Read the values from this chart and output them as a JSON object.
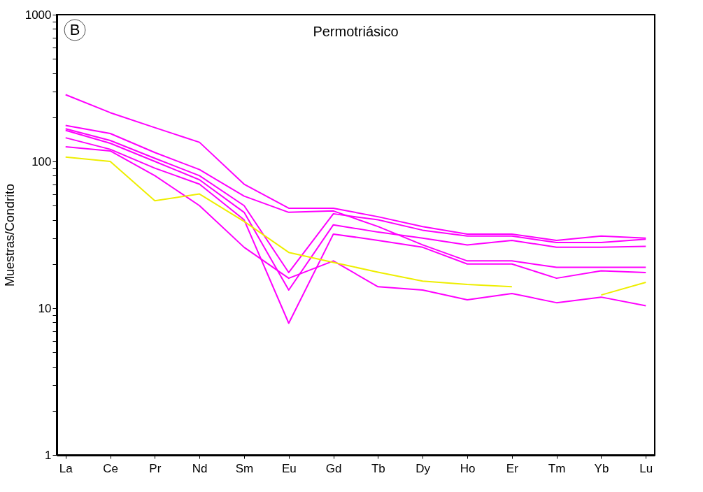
{
  "chart_data": {
    "type": "line",
    "title": "Permotriásico",
    "ylabel": "Muestras/Condrito",
    "annotations": [
      "B"
    ],
    "categories": [
      "La",
      "Ce",
      "Pr",
      "Nd",
      "Sm",
      "Eu",
      "Gd",
      "Tb",
      "Dy",
      "Ho",
      "Er",
      "Tm",
      "Yb",
      "Lu"
    ],
    "series": [
      {
        "color": "#ff00ff",
        "values": [
          285,
          215,
          170,
          135,
          70,
          48,
          48,
          42,
          36,
          32,
          32,
          29,
          31,
          30
        ]
      },
      {
        "color": "#ff00ff",
        "values": [
          176,
          155,
          115,
          88,
          58,
          45,
          46,
          36,
          27,
          21,
          21,
          19,
          19,
          19
        ]
      },
      {
        "color": "#ff00ff",
        "values": [
          167,
          139,
          105,
          80,
          50,
          17.5,
          44,
          40,
          34,
          31,
          31,
          28,
          28,
          29.5
        ]
      },
      {
        "color": "#ff00ff",
        "values": [
          163,
          133,
          100,
          75,
          45,
          13.3,
          37,
          33,
          30,
          27,
          29,
          26,
          26,
          26.4
        ]
      },
      {
        "color": "#ff00ff",
        "values": [
          145,
          121,
          90,
          70,
          40,
          7.9,
          32,
          29,
          26,
          20,
          20,
          16,
          18,
          17.5
        ]
      },
      {
        "color": "#ff00ff",
        "values": [
          126,
          118,
          80,
          50,
          26,
          16,
          21,
          14,
          13.3,
          11.4,
          12.6,
          10.9,
          11.9,
          10.4
        ]
      },
      {
        "color": "#eeee00",
        "values": [
          107,
          100,
          54,
          60,
          39,
          24,
          20.5,
          17.6,
          15.3,
          14.5,
          14,
          null,
          12.3,
          15
        ]
      }
    ],
    "log": true,
    "ylim": [
      1,
      1000
    ],
    "yticks": [
      1,
      {
        "value": 2,
        "label": null
      },
      {
        "value": 3,
        "label": null
      },
      {
        "value": 4,
        "label": null
      },
      {
        "value": 5,
        "label": null
      },
      {
        "value": 6,
        "label": null
      },
      {
        "value": 7,
        "label": null
      },
      {
        "value": 8,
        "label": null
      },
      {
        "value": 9,
        "label": null
      },
      10,
      {
        "value": 20,
        "label": null
      },
      {
        "value": 30,
        "label": null
      },
      {
        "value": 40,
        "label": null
      },
      {
        "value": 50,
        "label": null
      },
      {
        "value": 60,
        "label": null
      },
      {
        "value": 70,
        "label": null
      },
      {
        "value": 80,
        "label": null
      },
      {
        "value": 90,
        "label": null
      },
      100,
      {
        "value": 200,
        "label": null
      },
      {
        "value": 300,
        "label": null
      },
      {
        "value": 400,
        "label": null
      },
      {
        "value": 500,
        "label": null
      },
      {
        "value": 600,
        "label": null
      },
      {
        "value": 700,
        "label": null
      },
      {
        "value": 800,
        "label": null
      },
      {
        "value": 900,
        "label": null
      },
      1000
    ],
    "grid": false,
    "legend": false,
    "marker": "none",
    "line_style": "solid"
  }
}
